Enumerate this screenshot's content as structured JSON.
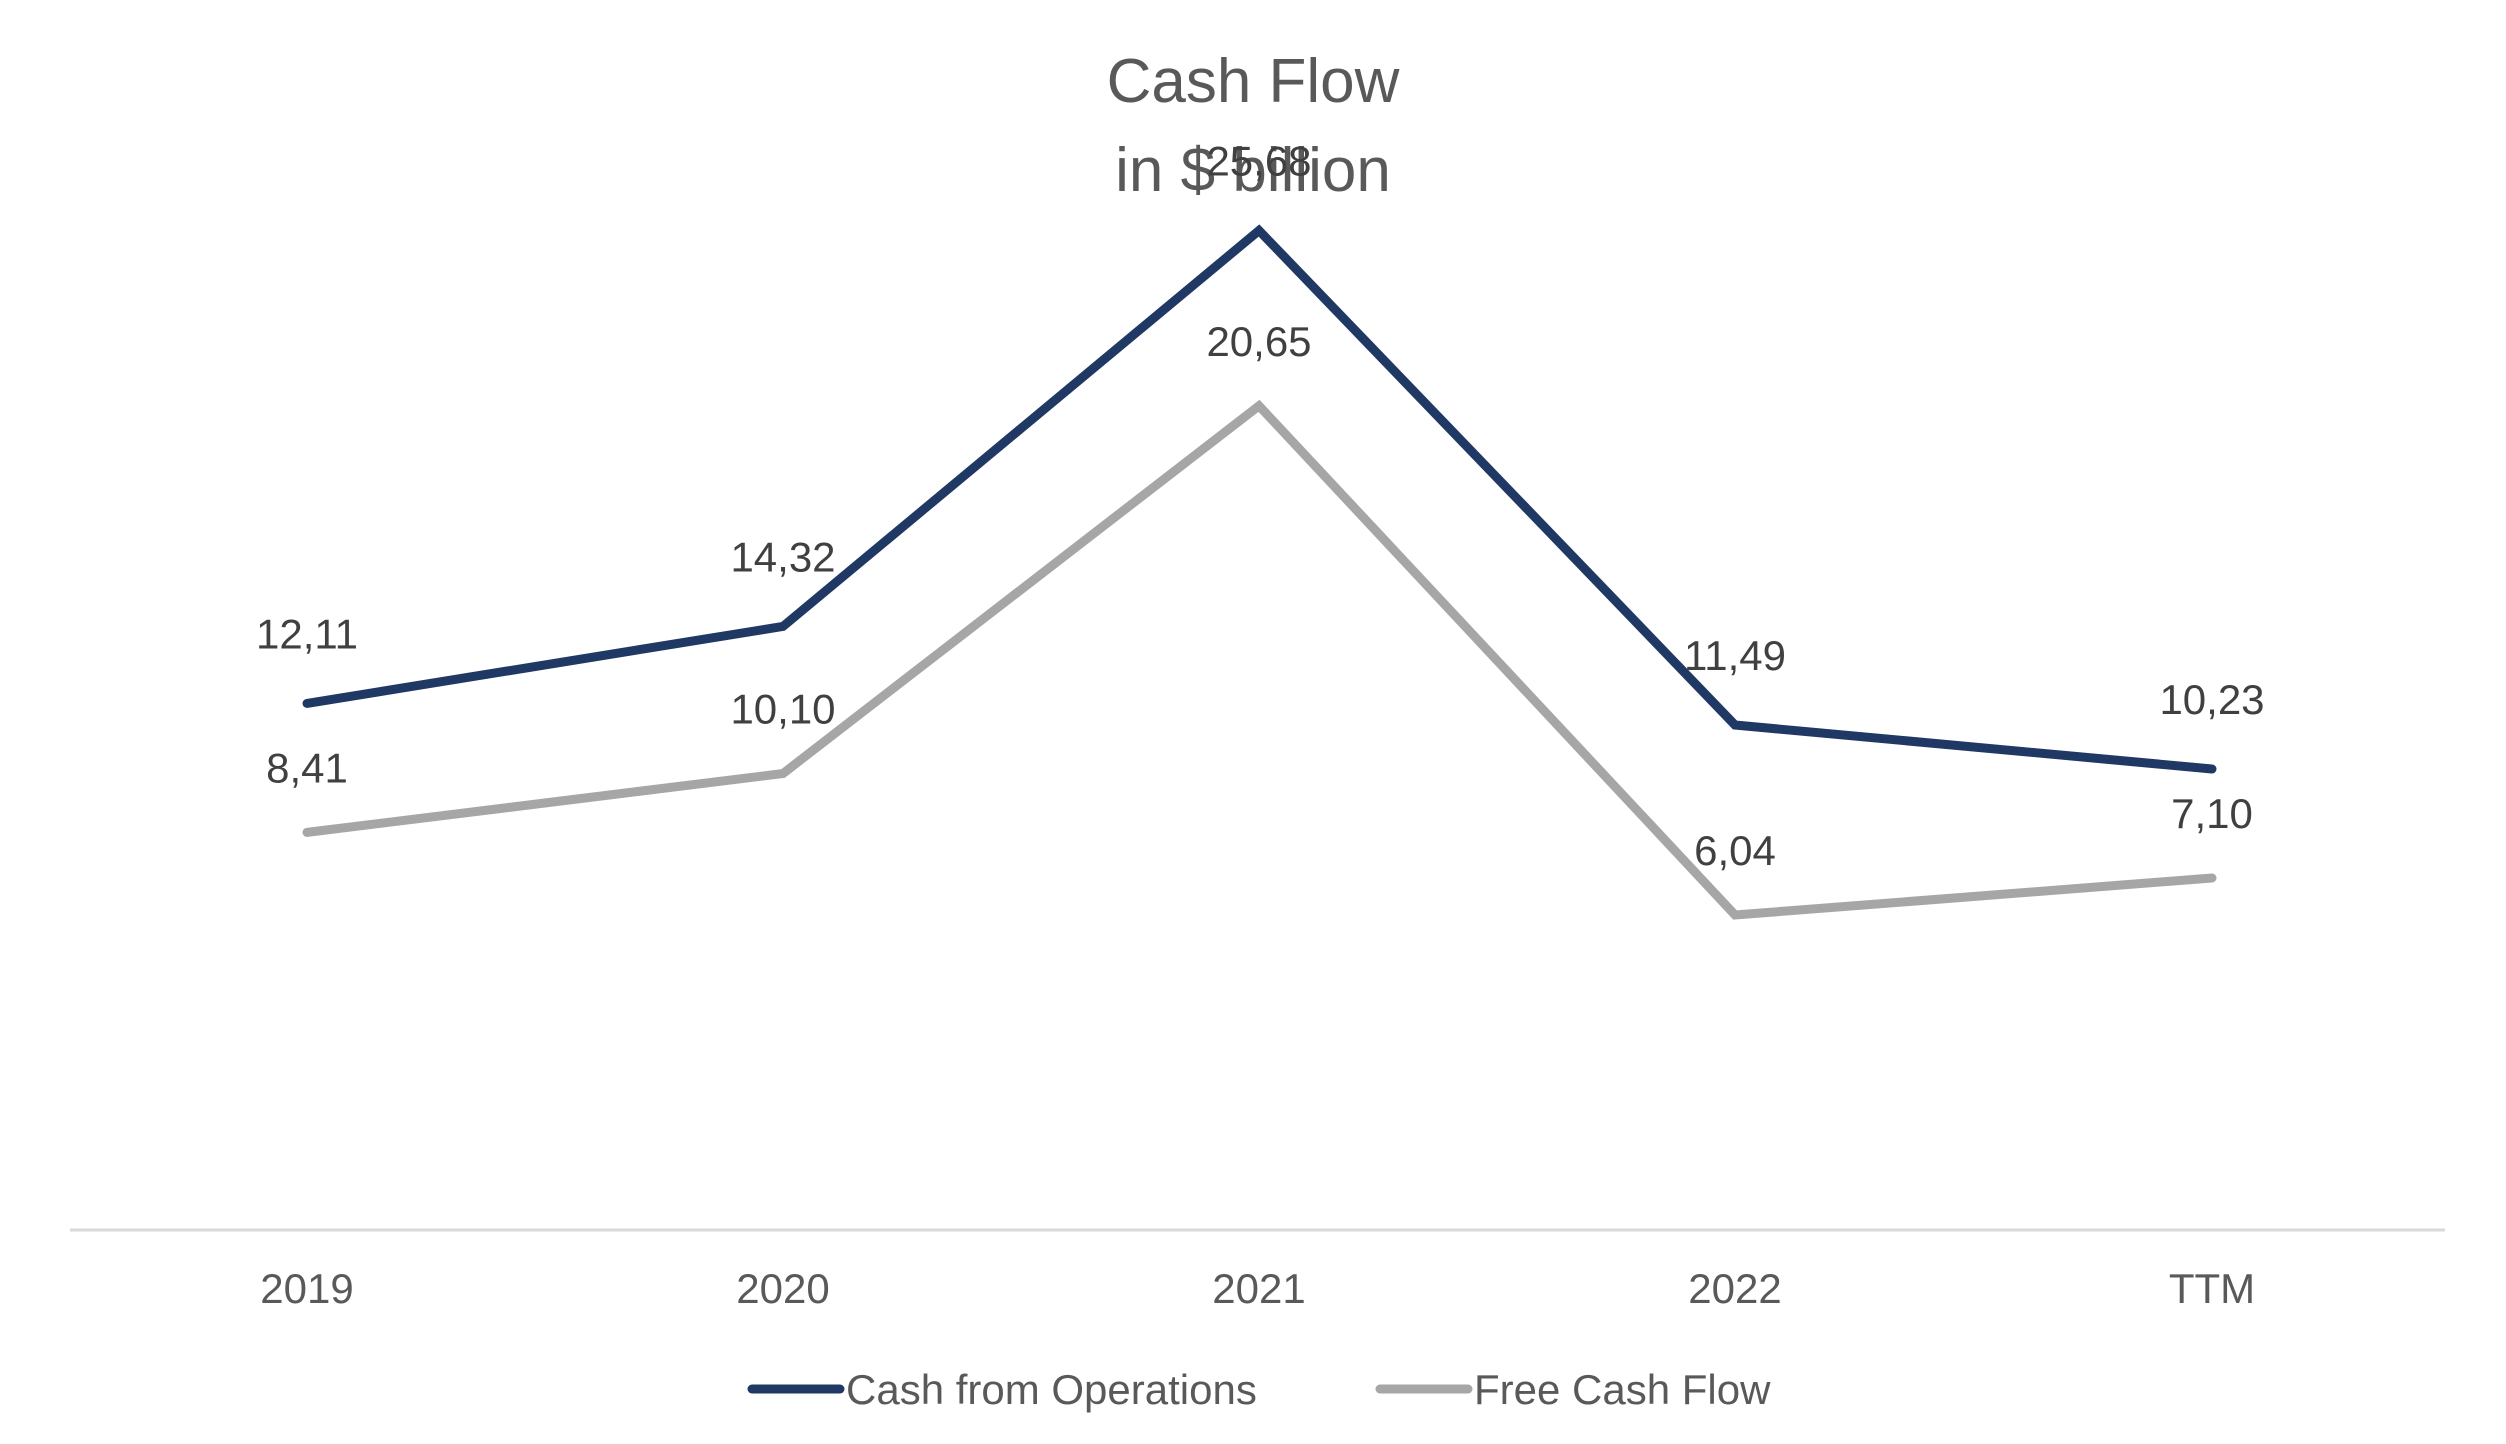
{
  "chart_data": {
    "type": "line",
    "title": "Cash Flow",
    "subtitle": "in $ billion",
    "categories": [
      "2019",
      "2020",
      "2021",
      "2022",
      "TTM"
    ],
    "series": [
      {
        "name": "Cash from Operations",
        "color": "#1f3864",
        "values": [
          12.11,
          14.32,
          25.68,
          11.49,
          10.23
        ],
        "labels": [
          "12,11",
          "14,32",
          "25,68",
          "11,49",
          "10,23"
        ]
      },
      {
        "name": "Free Cash Flow",
        "color": "#a6a6a6",
        "values": [
          8.41,
          10.1,
          20.65,
          6.04,
          7.1
        ],
        "labels": [
          "8,41",
          "10,10",
          "20,65",
          "6,04",
          "7,10"
        ]
      }
    ],
    "ylim": [
      -3,
      30
    ],
    "grid": false,
    "legend_position": "bottom"
  }
}
